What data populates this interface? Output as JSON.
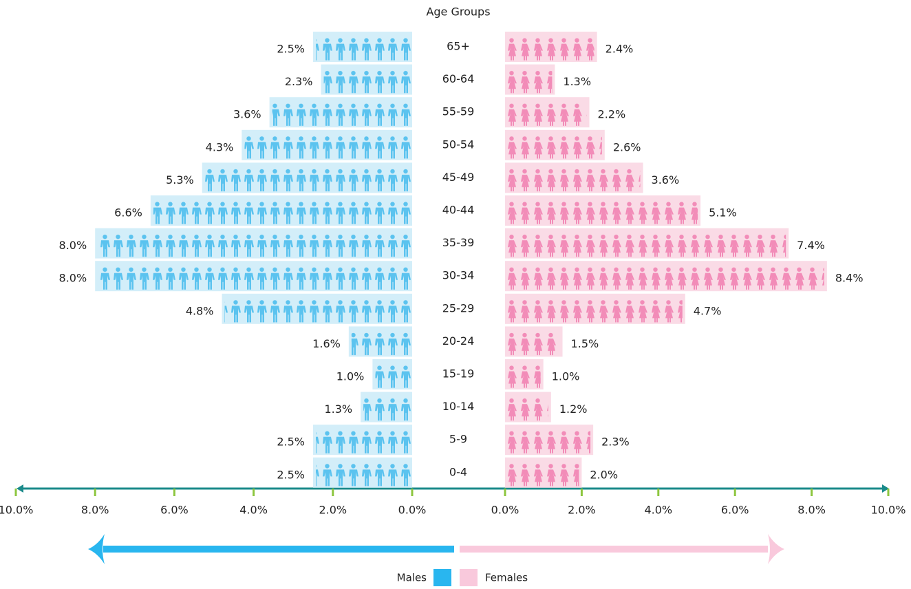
{
  "chart_data": {
    "type": "pyramid",
    "title": "Age Groups",
    "categories": [
      "65+",
      "60-64",
      "55-59",
      "50-54",
      "45-49",
      "40-44",
      "35-39",
      "30-34",
      "25-29",
      "20-24",
      "15-19",
      "10-14",
      "5-9",
      "0-4"
    ],
    "series": [
      {
        "name": "Males",
        "color": "#29b6ef",
        "bar_color": "#d3eef9",
        "icon_color": "#5bc3ef",
        "values": [
          2.5,
          2.3,
          3.6,
          4.3,
          5.3,
          6.6,
          8.0,
          8.0,
          4.8,
          1.6,
          1.0,
          1.3,
          2.5,
          2.5
        ],
        "value_labels": [
          "2.5%",
          "2.3%",
          "3.6%",
          "4.3%",
          "5.3%",
          "6.6%",
          "8.0%",
          "8.0%",
          "4.8%",
          "1.6%",
          "1.0%",
          "1.3%",
          "2.5%",
          "2.5%"
        ]
      },
      {
        "name": "Females",
        "color": "#f9c9dc",
        "bar_color": "#fadbe6",
        "icon_color": "#f28cb8",
        "values": [
          2.4,
          1.3,
          2.2,
          2.6,
          3.6,
          5.1,
          7.4,
          8.4,
          4.7,
          1.5,
          1.0,
          1.2,
          2.3,
          2.0
        ],
        "value_labels": [
          "2.4%",
          "1.3%",
          "2.2%",
          "2.6%",
          "3.6%",
          "5.1%",
          "7.4%",
          "8.4%",
          "4.7%",
          "1.5%",
          "1.0%",
          "1.2%",
          "2.3%",
          "2.0%"
        ]
      }
    ],
    "xlim": [
      0,
      10
    ],
    "xticks": [
      {
        "value": 0,
        "label": "0.0%"
      },
      {
        "value": 2,
        "label": "2.0%"
      },
      {
        "value": 4,
        "label": "4.0%"
      },
      {
        "value": 6,
        "label": "6.0%"
      },
      {
        "value": 8,
        "label": "8.0%"
      },
      {
        "value": 10,
        "label": "10.0%"
      }
    ]
  }
}
